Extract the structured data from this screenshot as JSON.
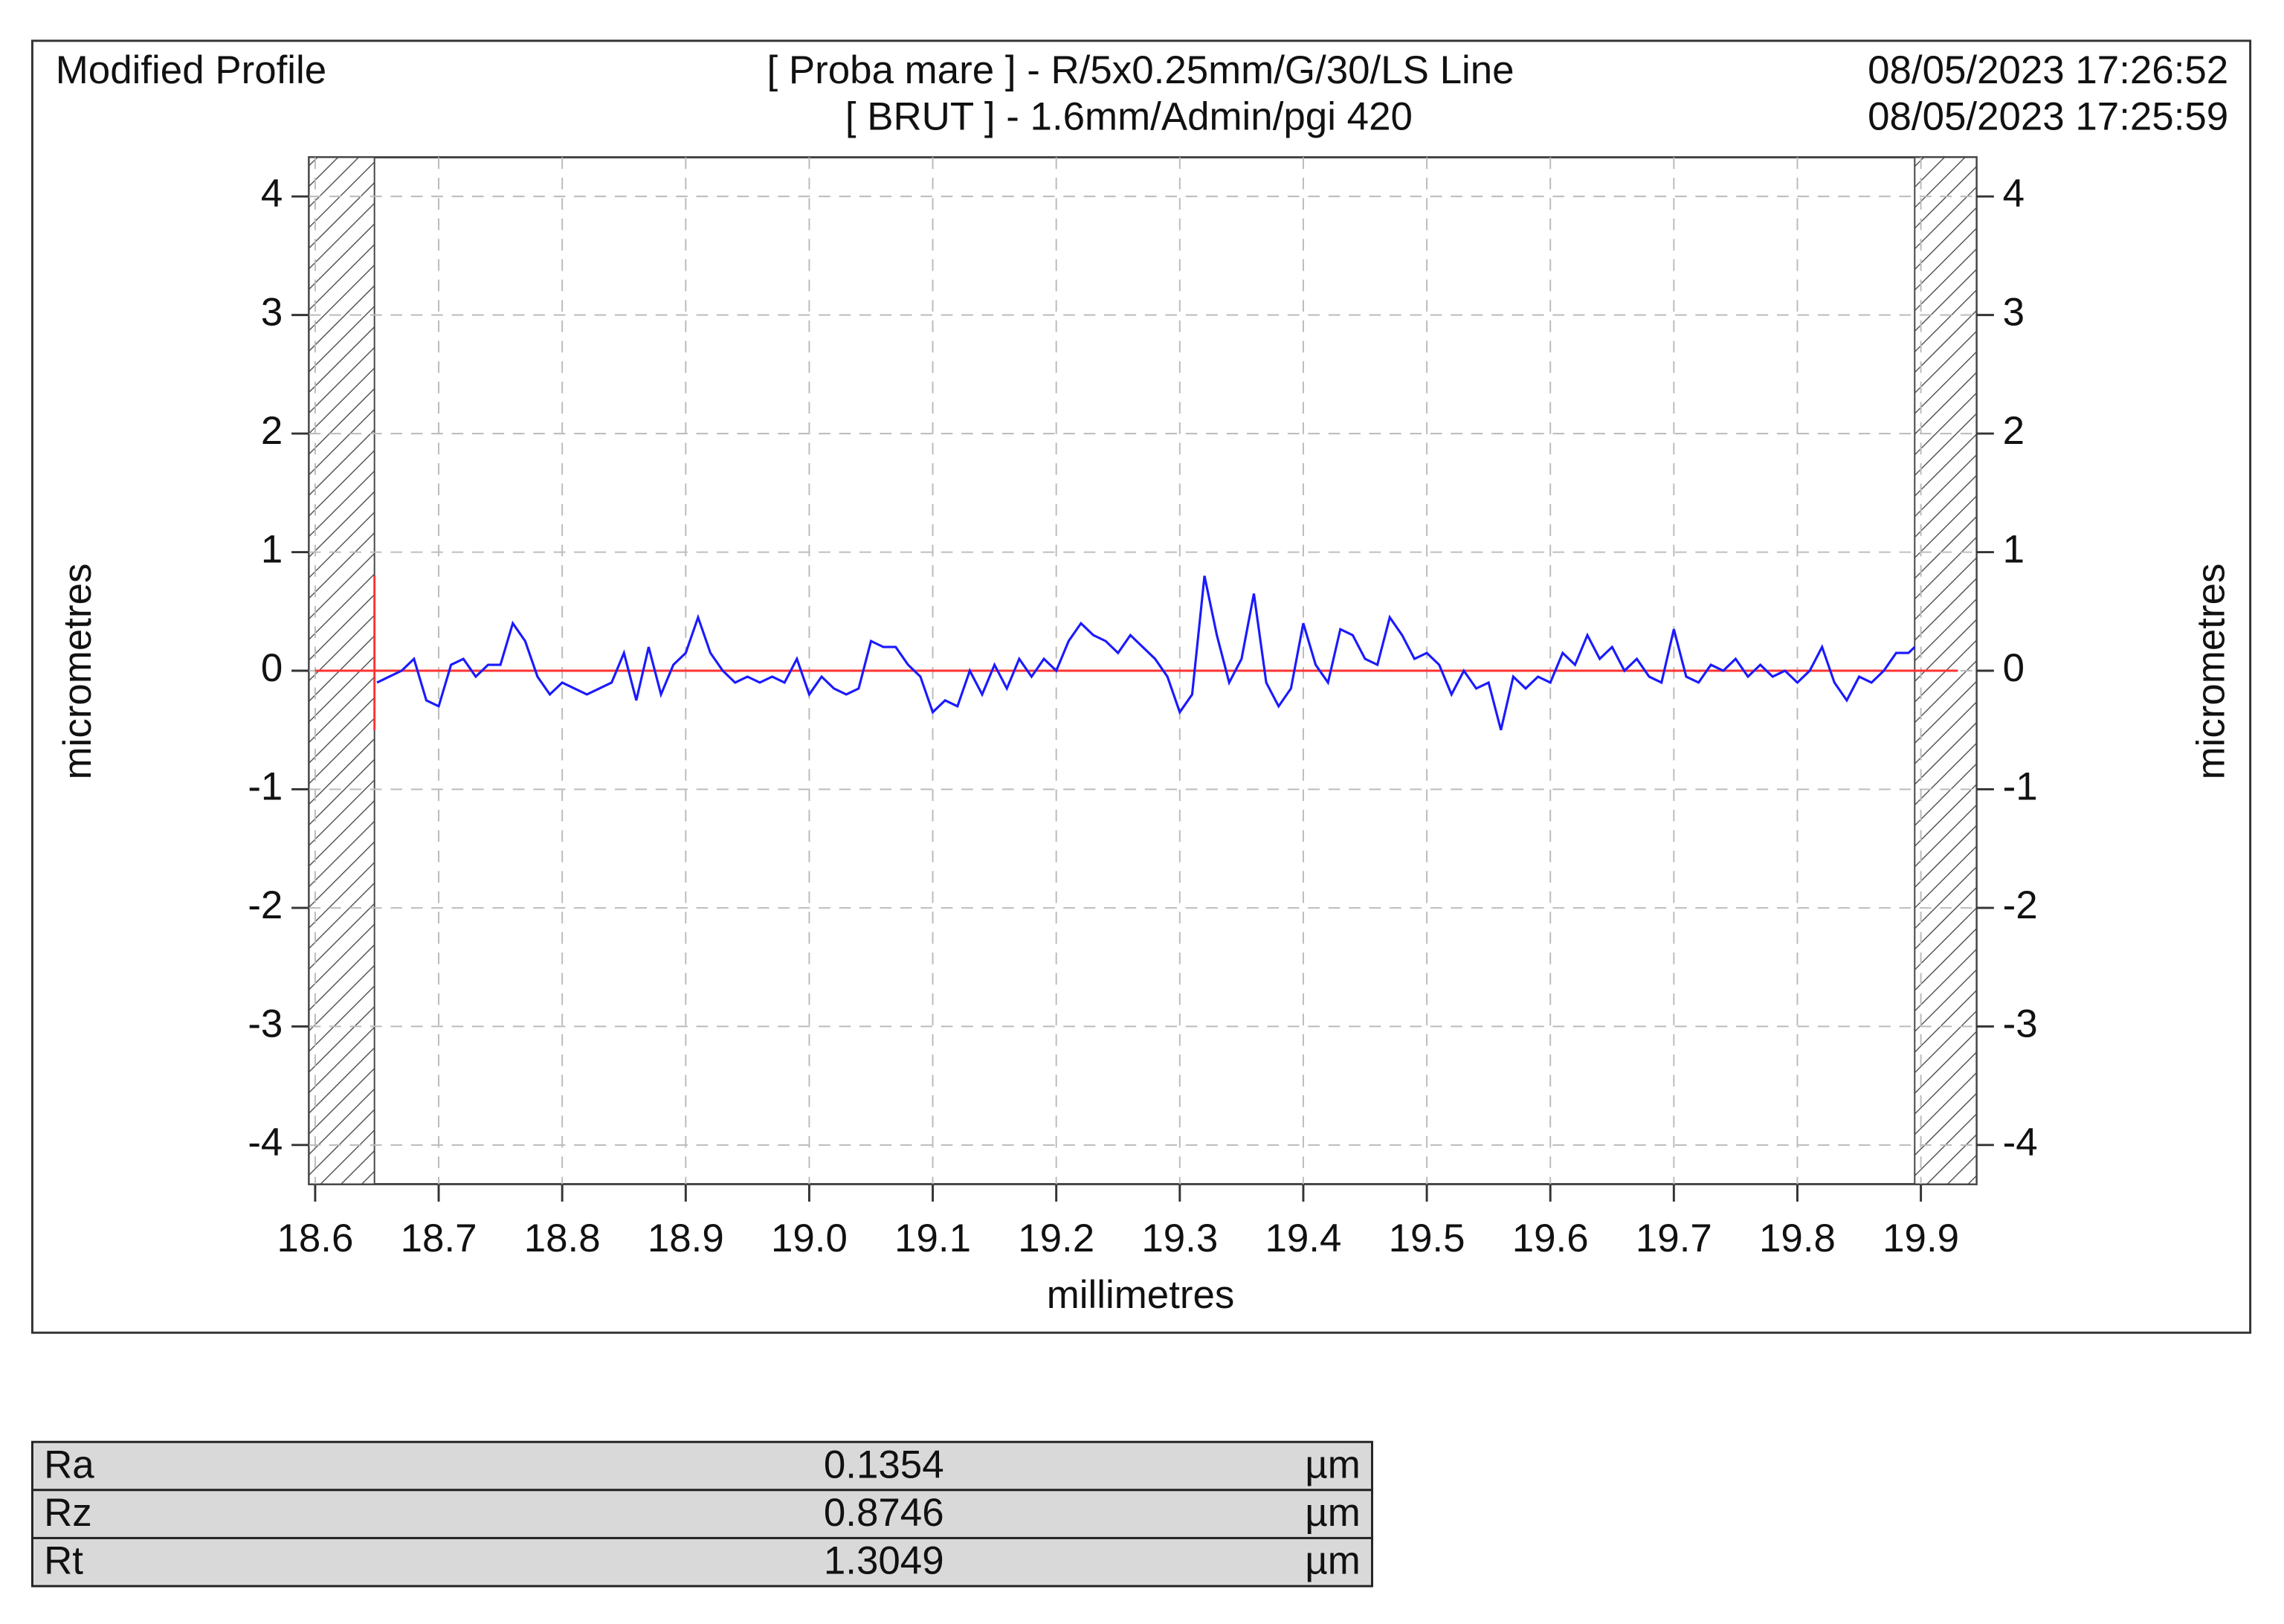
{
  "chart_data": {
    "type": "line",
    "title": "Modified Profile",
    "subtitle": "[ Proba mare ] - R/5x0.25mm/G/30/LS Line",
    "subtitle2": "[ BRUT ] - 1.6mm/Admin/pgi 420",
    "date1": "08/05/2023 17:26:52",
    "date2": "08/05/2023 17:25:59",
    "xlabel": "millimetres",
    "ylabel": "micrometres",
    "y2label": "micrometres",
    "xlim": [
      18.595,
      19.945
    ],
    "ylim": [
      -4.33,
      4.33
    ],
    "y2lim": [
      -4.33,
      4.33
    ],
    "xticks": [
      18.6,
      18.7,
      18.8,
      18.9,
      {
        "value": 19,
        "label": "19.0"
      },
      19.1,
      19.2,
      19.3,
      19.4,
      19.5,
      19.6,
      19.7,
      19.8,
      19.9
    ],
    "yticks": [
      -4,
      -3,
      -2,
      -1,
      0,
      1,
      2,
      3,
      4
    ],
    "y2ticks": [
      -4,
      -3,
      -2,
      -1,
      0,
      1,
      2,
      3,
      4
    ],
    "grid": true,
    "hatched_regions": [
      [
        18.595,
        18.648
      ],
      [
        19.895,
        19.945
      ]
    ],
    "reference_line": {
      "y": 0,
      "x": [
        18.6,
        19.93
      ],
      "color": "#ff3333"
    },
    "start_marker": {
      "x": 18.648,
      "y": [
        -0.5,
        0.8
      ],
      "color": "#ff3333"
    },
    "x": [
      18.65,
      18.66,
      18.67,
      18.68,
      18.69,
      18.7,
      18.71,
      18.72,
      18.73,
      18.74,
      18.75,
      18.76,
      18.77,
      18.78,
      18.79,
      18.8,
      18.81,
      18.82,
      18.83,
      18.84,
      18.85,
      18.86,
      18.87,
      18.88,
      18.89,
      18.9,
      18.91,
      18.92,
      18.93,
      18.94,
      18.95,
      18.96,
      18.97,
      18.98,
      18.99,
      19.0,
      19.01,
      19.02,
      19.03,
      19.04,
      19.05,
      19.06,
      19.07,
      19.08,
      19.09,
      19.1,
      19.11,
      19.12,
      19.13,
      19.14,
      19.15,
      19.16,
      19.17,
      19.18,
      19.19,
      19.2,
      19.21,
      19.22,
      19.23,
      19.24,
      19.25,
      19.26,
      19.27,
      19.28,
      19.29,
      19.3,
      19.31,
      19.32,
      19.33,
      19.34,
      19.35,
      19.36,
      19.37,
      19.38,
      19.39,
      19.4,
      19.41,
      19.42,
      19.43,
      19.44,
      19.45,
      19.46,
      19.47,
      19.48,
      19.49,
      19.5,
      19.51,
      19.52,
      19.53,
      19.54,
      19.55,
      19.56,
      19.57,
      19.58,
      19.59,
      19.6,
      19.61,
      19.62,
      19.63,
      19.64,
      19.65,
      19.66,
      19.67,
      19.68,
      19.69,
      19.7,
      19.71,
      19.72,
      19.73,
      19.74,
      19.75,
      19.76,
      19.77,
      19.78,
      19.79,
      19.8,
      19.81,
      19.82,
      19.83,
      19.84,
      19.85,
      19.86,
      19.87,
      19.88,
      19.89,
      19.895
    ],
    "series": [
      {
        "name": "Modified Profile",
        "color": "#1a1aff",
        "values": [
          -0.1,
          -0.05,
          0.0,
          0.1,
          -0.25,
          -0.3,
          0.05,
          0.1,
          -0.05,
          0.05,
          0.05,
          0.4,
          0.25,
          -0.05,
          -0.2,
          -0.1,
          -0.15,
          -0.2,
          -0.15,
          -0.1,
          0.15,
          -0.25,
          0.2,
          -0.2,
          0.05,
          0.15,
          0.45,
          0.15,
          0.0,
          -0.1,
          -0.05,
          -0.1,
          -0.05,
          -0.1,
          0.1,
          -0.2,
          -0.05,
          -0.15,
          -0.2,
          -0.15,
          0.25,
          0.2,
          0.2,
          0.05,
          -0.05,
          -0.35,
          -0.25,
          -0.3,
          0.0,
          -0.2,
          0.05,
          -0.15,
          0.1,
          -0.05,
          0.1,
          0.0,
          0.25,
          0.4,
          0.3,
          0.25,
          0.15,
          0.3,
          0.2,
          0.1,
          -0.05,
          -0.35,
          -0.2,
          0.8,
          0.3,
          -0.1,
          0.1,
          0.65,
          -0.1,
          -0.3,
          -0.15,
          0.4,
          0.05,
          -0.1,
          0.35,
          0.3,
          0.1,
          0.05,
          0.45,
          0.3,
          0.1,
          0.15,
          0.05,
          -0.2,
          0.0,
          -0.15,
          -0.1,
          -0.5,
          -0.05,
          -0.15,
          -0.05,
          -0.1,
          0.15,
          0.05,
          0.3,
          0.1,
          0.2,
          0.0,
          0.1,
          -0.05,
          -0.1,
          0.35,
          -0.05,
          -0.1,
          0.05,
          0.0,
          0.1,
          -0.05,
          0.05,
          -0.05,
          0.0,
          -0.1,
          0.0,
          0.2,
          -0.1,
          -0.25,
          -0.05,
          -0.1,
          0.0,
          0.15,
          0.15,
          0.2
        ]
      }
    ]
  },
  "table": {
    "rows": [
      [
        "Ra",
        "0.1354",
        "µm"
      ],
      [
        "Rz",
        "0.8746",
        "µm"
      ],
      [
        "Rt",
        "1.3049",
        "µm"
      ]
    ]
  }
}
